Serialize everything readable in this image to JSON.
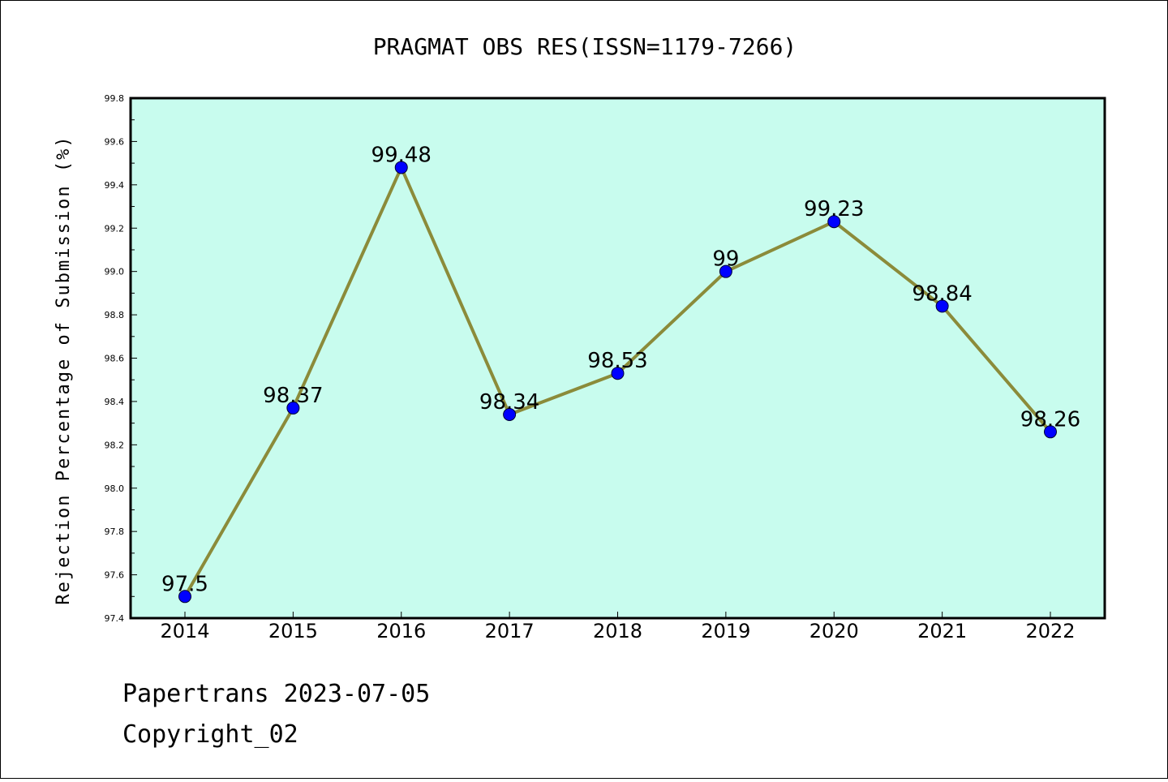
{
  "chart_data": {
    "type": "line",
    "title": "PRAGMAT OBS RES(ISSN=1179-7266)",
    "xlabel": "",
    "ylabel": "Rejection Percentage of Submission (%)",
    "categories": [
      "2014",
      "2015",
      "2016",
      "2017",
      "2018",
      "2019",
      "2020",
      "2021",
      "2022"
    ],
    "series": [
      {
        "values": [
          97.5,
          98.37,
          99.48,
          98.34,
          98.53,
          99,
          99.23,
          98.84,
          98.26
        ],
        "labels": [
          "97.5",
          "98.37",
          "99.48",
          "98.34",
          "98.53",
          "99",
          "99.23",
          "98.84",
          "98.26"
        ]
      }
    ],
    "ylim": [
      97.4,
      99.8
    ],
    "yticks": [
      97.4,
      97.6,
      97.8,
      98.0,
      98.2,
      98.4,
      98.6,
      98.8,
      99.0,
      99.2,
      99.4,
      99.6,
      99.8
    ],
    "ytick_labels": [
      "97.4",
      "97.6",
      "97.8",
      "98.0",
      "98.2",
      "98.4",
      "98.6",
      "98.8",
      "99.0",
      "99.2",
      "99.4",
      "99.6",
      "99.8"
    ],
    "grid": false,
    "colors": {
      "plot_background": "#c8fcee",
      "line": "#8b8b3a",
      "marker": "#0000ff"
    }
  },
  "footer": {
    "line1": "Papertrans 2023-07-05",
    "line2": "Copyright_02"
  }
}
